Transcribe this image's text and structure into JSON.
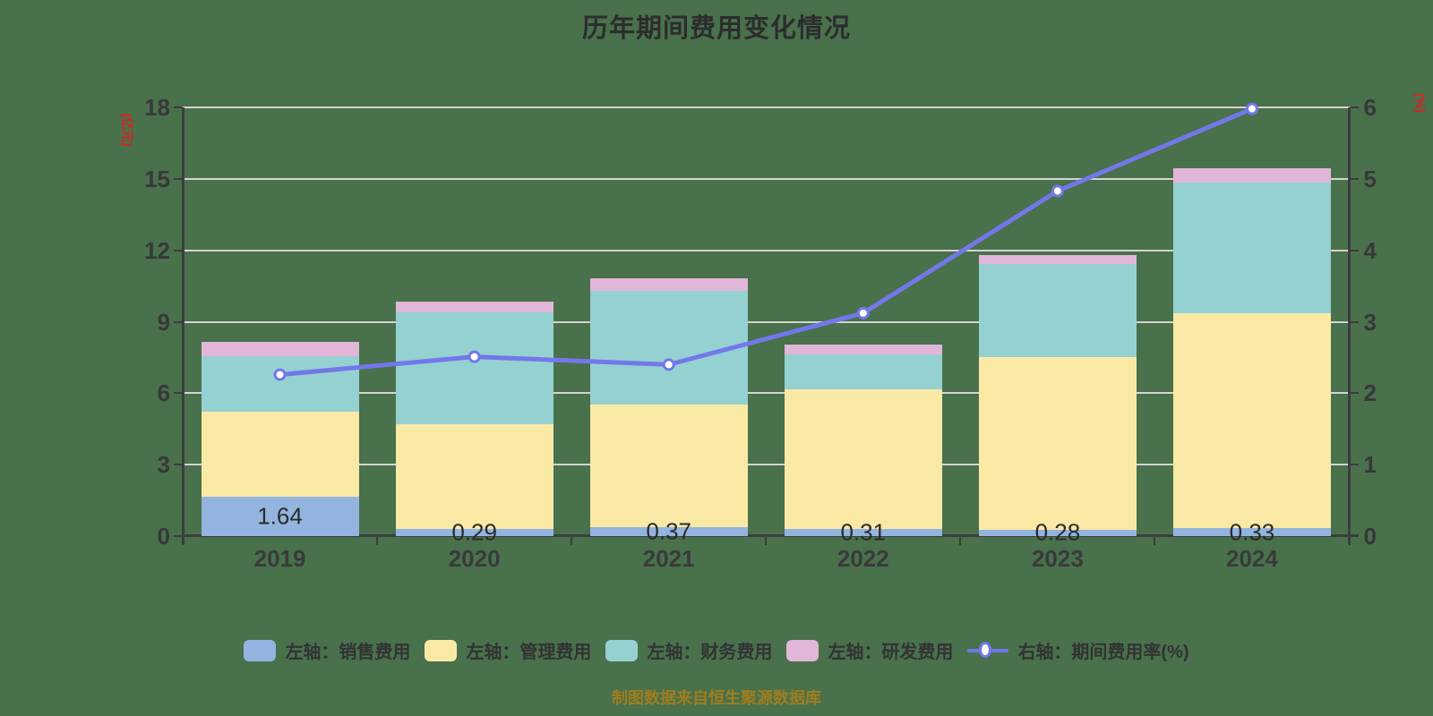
{
  "title": "历年期间费用变化情况",
  "footer": "制图数据来自恒生聚源数据库",
  "colors": {
    "background": "#48714C",
    "grid": "#d6d3d0",
    "axis": "#3d3d3d",
    "title_text": "#2d2d2d",
    "tick_text": "#383838",
    "unit_text": "#dd2222",
    "footer_text": "#9e7d1e",
    "value_label_text": "#2b2b2b"
  },
  "chart_data": {
    "type": "bar",
    "stacked": true,
    "grid": true,
    "legend_position": "bottom",
    "title": "历年期间费用变化情况",
    "categories": [
      "2019",
      "2020",
      "2021",
      "2022",
      "2023",
      "2024"
    ],
    "series": [
      {
        "name": "左轴：销售费用",
        "kind": "bar",
        "axis": "left",
        "color": "#93B4DF",
        "values": [
          1.64,
          0.29,
          0.37,
          0.31,
          0.28,
          0.33
        ]
      },
      {
        "name": "左轴：管理费用",
        "kind": "bar",
        "axis": "left",
        "color": "#FAE9A5",
        "values": [
          3.58,
          4.39,
          5.16,
          5.85,
          7.25,
          9.04
        ]
      },
      {
        "name": "左轴：财务费用",
        "kind": "bar",
        "axis": "left",
        "color": "#95D1D1",
        "values": [
          2.33,
          4.73,
          4.77,
          1.46,
          3.88,
          5.47
        ]
      },
      {
        "name": "左轴：研发费用",
        "kind": "bar",
        "axis": "left",
        "color": "#E2B6D8",
        "values": [
          0.6,
          0.43,
          0.52,
          0.41,
          0.38,
          0.59
        ]
      },
      {
        "name": "右轴：期间费用率(%)",
        "kind": "line",
        "axis": "right",
        "color": "#7477EA",
        "marker": "circle",
        "marker_fill": "#ffffff",
        "values": [
          2.26,
          2.51,
          2.4,
          3.12,
          4.83,
          5.98
        ]
      }
    ],
    "bar_value_labels": [
      "1.64",
      "0.29",
      "0.37",
      "0.31",
      "0.28",
      "0.33"
    ],
    "left_axis": {
      "unit": "(亿元)",
      "min": 0,
      "max": 18,
      "ticks": [
        0,
        3,
        6,
        9,
        12,
        15,
        18
      ]
    },
    "right_axis": {
      "unit": "(%)",
      "min": 0,
      "max": 6,
      "ticks": [
        0,
        1,
        2,
        3,
        4,
        5,
        6
      ]
    }
  }
}
